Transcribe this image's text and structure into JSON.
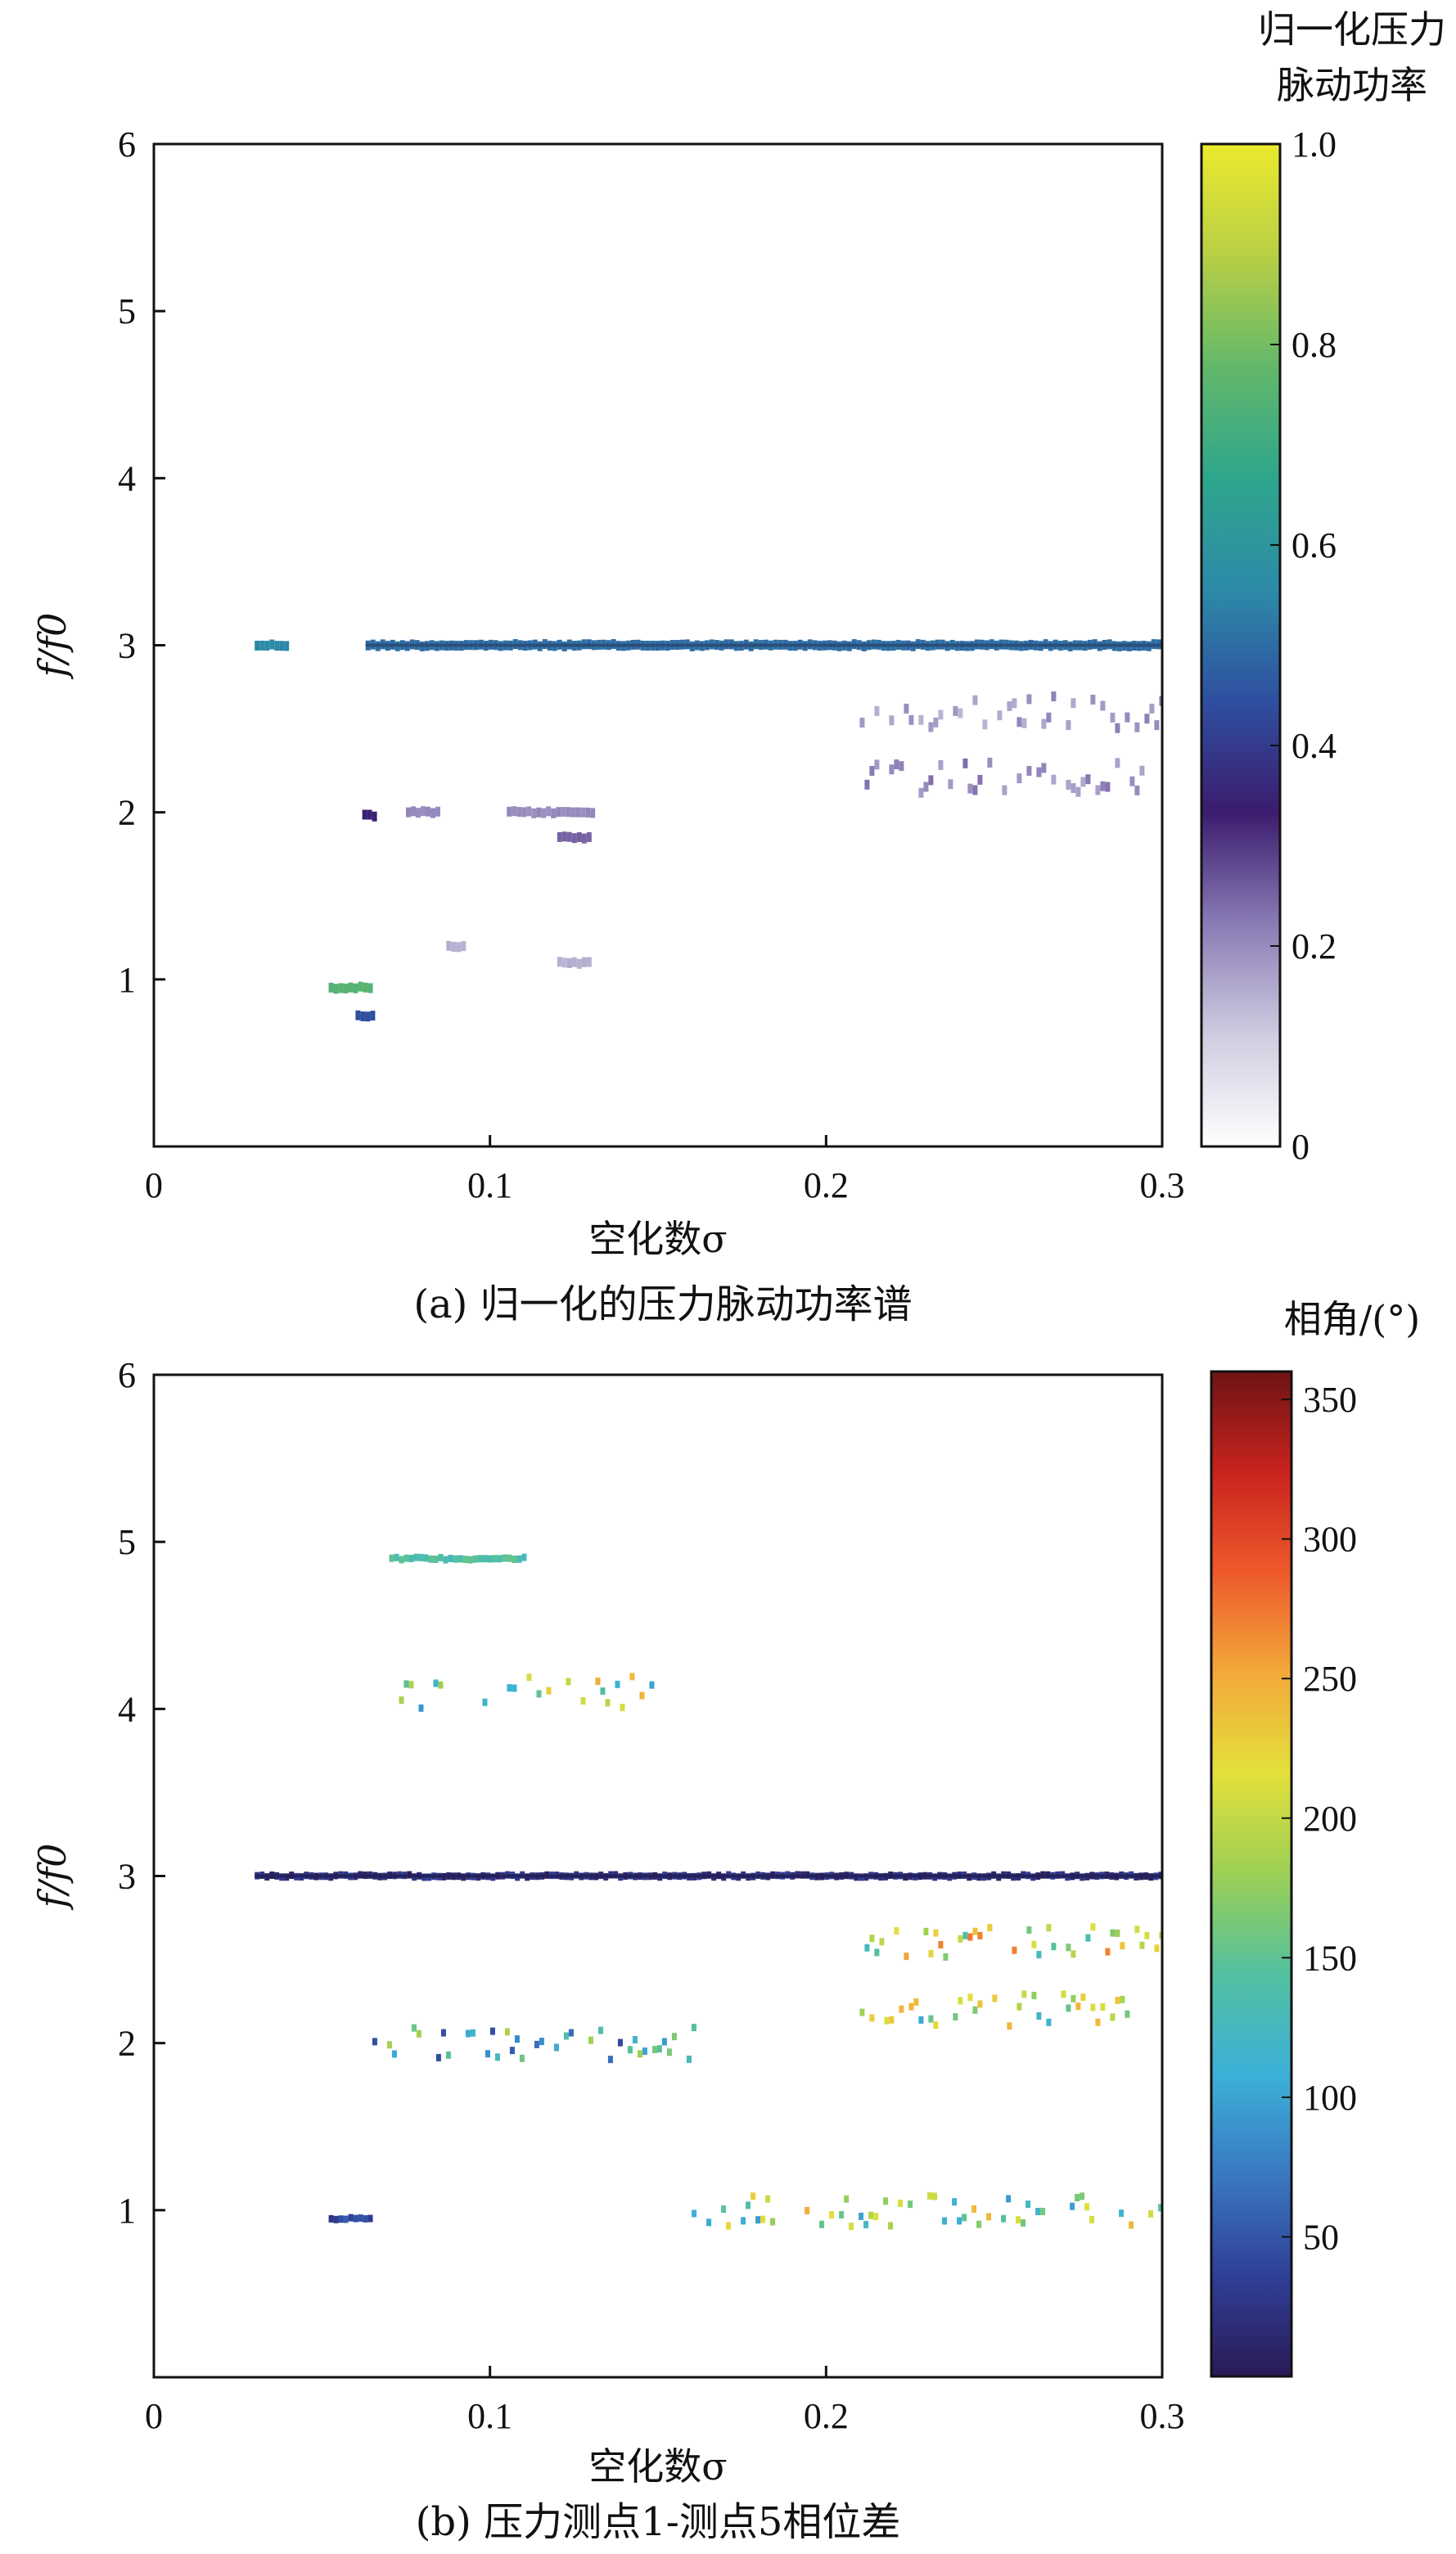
{
  "chart_data": [
    {
      "type": "heatmap",
      "caption": "(a) 归一化的压力脉动功率谱",
      "xlabel": "空化数σ",
      "ylabel": "f/f0",
      "xlim": [
        0,
        0.3
      ],
      "ylim": [
        0,
        6
      ],
      "xticks": [
        "0",
        "0.1",
        "0.2",
        "0.3"
      ],
      "yticks": [
        "1",
        "2",
        "3",
        "4",
        "5",
        "6"
      ],
      "colorbar": {
        "title_lines": [
          "归一化压力",
          "脉动功率"
        ],
        "ticks": [
          "0",
          "0.2",
          "0.4",
          "0.6",
          "0.8",
          "1.0"
        ],
        "range": [
          0,
          1.0
        ],
        "colormap": [
          "#ffffff",
          "#cfcce0",
          "#8a7bb5",
          "#3b1c6e",
          "#2f4fa0",
          "#2d8aa8",
          "#2ea68c",
          "#63b86a",
          "#b8cf45",
          "#ece92e"
        ]
      },
      "features": [
        {
          "x": [
            0.03,
            0.04
          ],
          "y": 3.0,
          "value": 0.55
        },
        {
          "x": [
            0.063,
            0.3
          ],
          "y": 3.0,
          "value": 0.5
        },
        {
          "x": [
            0.052,
            0.065
          ],
          "y": 0.95,
          "value": 0.75
        },
        {
          "x": [
            0.06,
            0.065
          ],
          "y": 0.78,
          "value": 0.45
        },
        {
          "x": [
            0.062,
            0.066
          ],
          "y": 1.98,
          "value": 0.35
        },
        {
          "x": [
            0.075,
            0.085
          ],
          "y": 2.0,
          "value": 0.2
        },
        {
          "x": [
            0.105,
            0.13
          ],
          "y": 2.0,
          "value": 0.2
        },
        {
          "x": [
            0.12,
            0.13
          ],
          "y": 1.85,
          "value": 0.25
        },
        {
          "x": [
            0.21,
            0.3
          ],
          "y": 2.6,
          "value": 0.18
        },
        {
          "x": [
            0.21,
            0.3
          ],
          "y": 2.2,
          "value": 0.2
        },
        {
          "x": [
            0.087,
            0.092
          ],
          "y": 1.2,
          "value": 0.15
        },
        {
          "x": [
            0.12,
            0.13
          ],
          "y": 1.1,
          "value": 0.15
        }
      ]
    },
    {
      "type": "heatmap",
      "caption": "(b) 压力测点1-测点5相位差",
      "xlabel": "空化数σ",
      "ylabel": "f/f0",
      "xlim": [
        0,
        0.3
      ],
      "ylim": [
        0,
        6
      ],
      "xticks": [
        "0",
        "0.1",
        "0.2",
        "0.3"
      ],
      "yticks": [
        "1",
        "2",
        "3",
        "4",
        "5",
        "6"
      ],
      "colorbar": {
        "title_lines": [
          "相角/(°)"
        ],
        "ticks": [
          "50",
          "100",
          "150",
          "200",
          "250",
          "300",
          "350"
        ],
        "range": [
          0,
          360
        ],
        "colormap": [
          "#2a1a55",
          "#2f3f97",
          "#3a78c1",
          "#3cb0d8",
          "#52c0a0",
          "#9ccf55",
          "#e3e03c",
          "#f3a93a",
          "#ee5a2c",
          "#c8231e",
          "#6e1414"
        ]
      },
      "features": [
        {
          "x": [
            0.03,
            0.3
          ],
          "y": 3.0,
          "value": 20
        },
        {
          "x": [
            0.052,
            0.065
          ],
          "y": 0.95,
          "value": 40
        },
        {
          "x": [
            0.065,
            0.16
          ],
          "y": 2.0,
          "value": 120
        },
        {
          "x": [
            0.07,
            0.11
          ],
          "y": 4.9,
          "value": 140
        },
        {
          "x": [
            0.07,
            0.15
          ],
          "y": 4.1,
          "value": 170
        },
        {
          "x": [
            0.21,
            0.3
          ],
          "y": 2.6,
          "value": 200
        },
        {
          "x": [
            0.21,
            0.3
          ],
          "y": 2.2,
          "value": 180
        },
        {
          "x": [
            0.16,
            0.3
          ],
          "y": 1.0,
          "value": 170
        }
      ]
    }
  ]
}
